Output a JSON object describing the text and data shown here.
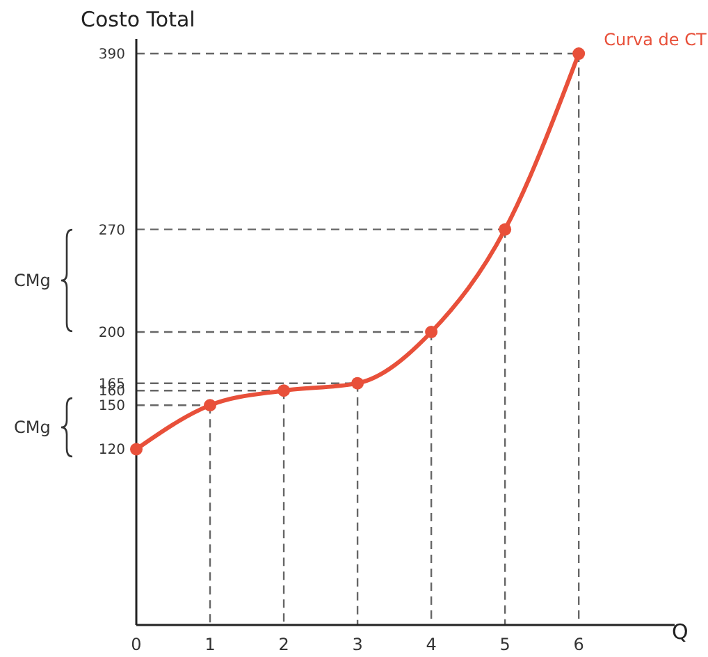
{
  "chart_data": {
    "type": "line",
    "ylabel": "Costo Total",
    "xlabel": "Q",
    "x": [
      0,
      1,
      2,
      3,
      4,
      5,
      6
    ],
    "series": [
      {
        "name": "Curva de CT",
        "color": "#e8503a",
        "values": [
          120,
          150,
          160,
          165,
          200,
          270,
          390
        ]
      }
    ],
    "xlim": [
      0,
      7.3
    ],
    "ylim": [
      0,
      400
    ],
    "xticks": [
      0,
      1,
      2,
      3,
      4,
      5,
      6
    ],
    "yticks": [
      120,
      150,
      160,
      165,
      200,
      270,
      390
    ],
    "marker": "circle",
    "line_style": "solid",
    "grid": false,
    "ref_lines": [
      {
        "axis": "y",
        "value": 150,
        "color": "#666666",
        "line_style": "dashed"
      },
      {
        "axis": "y",
        "value": 160,
        "color": "#666666",
        "line_style": "dashed"
      },
      {
        "axis": "y",
        "value": 165,
        "color": "#666666",
        "line_style": "dashed"
      },
      {
        "axis": "y",
        "value": 200,
        "color": "#666666",
        "line_style": "dashed"
      },
      {
        "axis": "y",
        "value": 270,
        "color": "#666666",
        "line_style": "dashed"
      },
      {
        "axis": "y",
        "value": 390,
        "color": "#666666",
        "line_style": "dashed"
      },
      {
        "axis": "x",
        "value": 1,
        "color": "#666666",
        "line_style": "dashed"
      },
      {
        "axis": "x",
        "value": 2,
        "color": "#666666",
        "line_style": "dashed"
      },
      {
        "axis": "x",
        "value": 3,
        "color": "#666666",
        "line_style": "dashed"
      },
      {
        "axis": "x",
        "value": 4,
        "color": "#666666",
        "line_style": "dashed"
      },
      {
        "axis": "x",
        "value": 5,
        "color": "#666666",
        "line_style": "dashed"
      },
      {
        "axis": "x",
        "value": 6,
        "color": "#666666",
        "line_style": "dashed"
      }
    ],
    "annotations": [
      "CMg",
      "CMg"
    ]
  }
}
